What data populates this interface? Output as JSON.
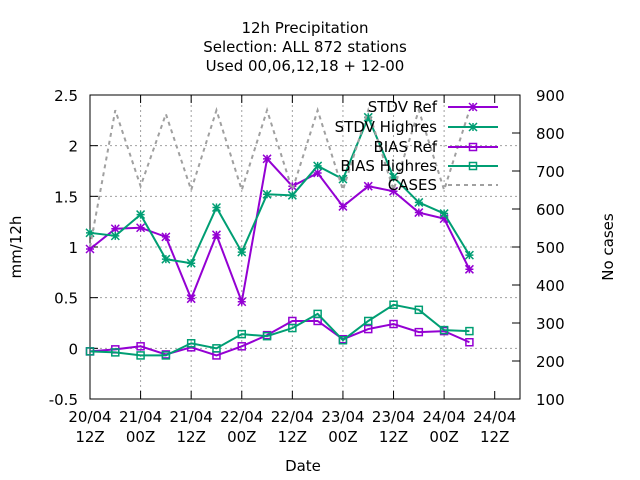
{
  "chart_data": {
    "type": "line",
    "title": [
      "12h Precipitation",
      "Selection: ALL     872 stations",
      "Used  00,06,12,18 + 12-00"
    ],
    "xlabel": "Date",
    "ylabel": "mm/12h",
    "y2label": "No cases",
    "ylim": [
      -0.5,
      2.5
    ],
    "y2lim": [
      100,
      900
    ],
    "yticks": [
      "-0.5",
      "0",
      "0.5",
      "1",
      "1.5",
      "2",
      "2.5"
    ],
    "y2ticks": [
      "100",
      "200",
      "300",
      "400",
      "500",
      "600",
      "700",
      "800",
      "900"
    ],
    "xticks": [
      {
        "top": "20/04",
        "bottom": "12Z"
      },
      {
        "top": "21/04",
        "bottom": "00Z"
      },
      {
        "top": "21/04",
        "bottom": "12Z"
      },
      {
        "top": "22/04",
        "bottom": "00Z"
      },
      {
        "top": "22/04",
        "bottom": "12Z"
      },
      {
        "top": "23/04",
        "bottom": "00Z"
      },
      {
        "top": "23/04",
        "bottom": "12Z"
      },
      {
        "top": "24/04",
        "bottom": "00Z"
      },
      {
        "top": "24/04",
        "bottom": "12Z"
      }
    ],
    "x": [
      "20/04 12Z",
      "20/04 18Z",
      "21/04 00Z",
      "21/04 06Z",
      "21/04 12Z",
      "21/04 18Z",
      "22/04 00Z",
      "22/04 06Z",
      "22/04 12Z",
      "22/04 18Z",
      "23/04 00Z",
      "23/04 06Z",
      "23/04 12Z",
      "23/04 18Z",
      "24/04 00Z",
      "24/04 06Z"
    ],
    "grid": true,
    "legend_position": "top-right",
    "series": [
      {
        "name": "STDV Ref",
        "axis": "y1",
        "marker": "x",
        "color": "#9400d3",
        "values": [
          0.98,
          1.18,
          1.19,
          1.1,
          0.49,
          1.12,
          0.46,
          1.87,
          1.6,
          1.73,
          1.4,
          1.6,
          1.55,
          1.34,
          1.28,
          0.78
        ]
      },
      {
        "name": "STDV Highres",
        "axis": "y1",
        "marker": "x",
        "color": "#009e73",
        "values": [
          1.14,
          1.11,
          1.32,
          0.88,
          0.84,
          1.39,
          0.95,
          1.52,
          1.51,
          1.8,
          1.67,
          2.28,
          1.69,
          1.44,
          1.33,
          0.92
        ]
      },
      {
        "name": "BIAS Ref",
        "axis": "y1",
        "marker": "square",
        "color": "#9400d3",
        "values": [
          -0.03,
          -0.01,
          0.02,
          -0.06,
          0.01,
          -0.07,
          0.02,
          0.13,
          0.27,
          0.27,
          0.09,
          0.19,
          0.24,
          0.16,
          0.17,
          0.06
        ]
      },
      {
        "name": "BIAS Highres",
        "axis": "y1",
        "marker": "square",
        "color": "#009e73",
        "values": [
          -0.03,
          -0.04,
          -0.07,
          -0.07,
          0.05,
          0.0,
          0.14,
          0.12,
          0.2,
          0.34,
          0.08,
          0.27,
          0.43,
          0.38,
          0.18,
          0.17
        ]
      },
      {
        "name": "CASES",
        "axis": "y2",
        "marker": "none",
        "dashed": true,
        "color": "#a0a0a0",
        "values": [
          500,
          860,
          660,
          850,
          650,
          860,
          650,
          860,
          650,
          860,
          650,
          860,
          650,
          860,
          650,
          860
        ]
      }
    ]
  }
}
